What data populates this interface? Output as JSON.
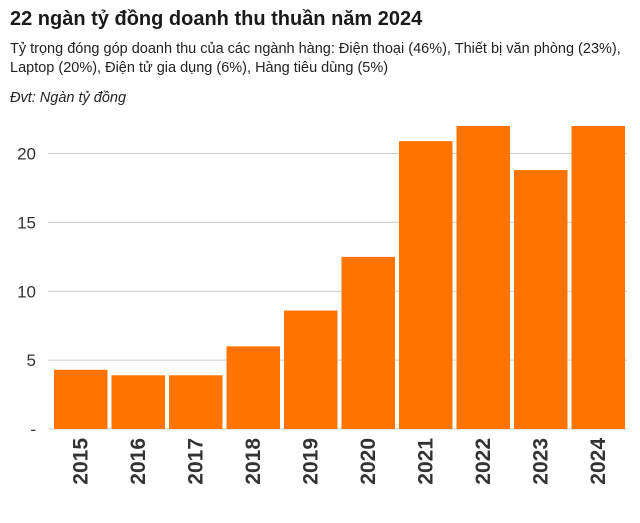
{
  "chart_data": {
    "type": "bar",
    "title": "22 ngàn tỷ đồng doanh thu thuần năm 2024",
    "subtitle": "Tỷ trọng đóng góp doanh thu của các ngành hàng: Điện thoại (46%), Thiết bị văn phòng (23%), Laptop (20%), Điện tử gia dụng (6%), Hàng tiêu dùng (5%)",
    "unit_note": "Đvt: Ngàn tỷ đồng",
    "categories": [
      "2015",
      "2016",
      "2017",
      "2018",
      "2019",
      "2020",
      "2021",
      "2022",
      "2023",
      "2024"
    ],
    "values": [
      4.3,
      3.9,
      3.9,
      6.0,
      8.6,
      12.5,
      20.9,
      22.0,
      18.8,
      22.0
    ],
    "yticks": [
      0,
      5,
      10,
      15,
      20
    ],
    "ytick_labels": [
      "-",
      "5",
      "10",
      "15",
      "20"
    ],
    "ylim": [
      0,
      22
    ],
    "xlabel": "",
    "ylabel": "",
    "grid": true,
    "legend": "none",
    "colors": {
      "bar": "#ff7400",
      "grid": "#cccccc",
      "axis_text": "#333333"
    }
  }
}
